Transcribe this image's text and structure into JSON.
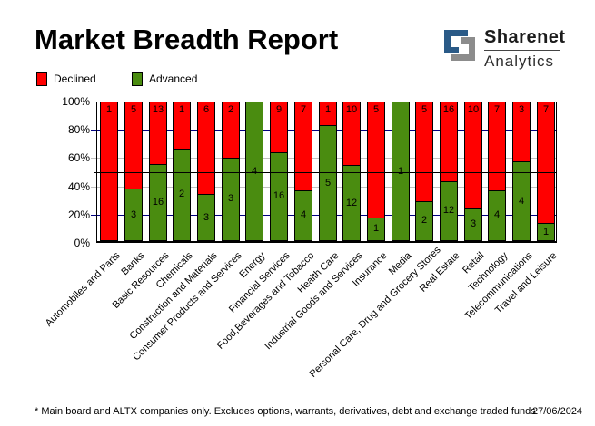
{
  "title": "Market Breadth Report",
  "logo": {
    "brand": "Sharenet",
    "sub": "Analytics",
    "blue": "#2a5a87",
    "gray": "#8c8c8c"
  },
  "legend": [
    {
      "label": "Declined",
      "color": "#ff0000"
    },
    {
      "label": "Advanced",
      "color": "#4a8c10"
    }
  ],
  "chart_data": {
    "type": "bar",
    "stacked": "percent",
    "title": "Market Breadth Report",
    "xlabel": "",
    "ylabel": "",
    "ylim": [
      0,
      100
    ],
    "y_ticks": [
      "100%",
      "80%",
      "60%",
      "40%",
      "20%",
      "0%"
    ],
    "categories": [
      "Automobiles and Parts",
      "Banks",
      "Basic Resources",
      "Chemicals",
      "Construction and Materials",
      "Consumer Products and Services",
      "Energy",
      "Financial Services",
      "Food,Beverages and Tobacco",
      "Health Care",
      "Industrial Goods and Services",
      "Insurance",
      "Media",
      "Personal Care, Drug and Grocery Stores",
      "Real Estate",
      "Retail",
      "Technology",
      "Telecommunications",
      "Travel and Leisure"
    ],
    "series": [
      {
        "name": "Declined",
        "color": "#ff0000",
        "values": [
          1,
          5,
          13,
          1,
          6,
          2,
          0,
          9,
          7,
          1,
          10,
          5,
          0,
          5,
          16,
          10,
          7,
          3,
          7
        ]
      },
      {
        "name": "Advanced",
        "color": "#4a8c10",
        "values": [
          0,
          3,
          16,
          2,
          3,
          3,
          4,
          16,
          4,
          5,
          12,
          1,
          1,
          2,
          12,
          3,
          4,
          4,
          1
        ]
      }
    ],
    "gridlines": {
      "navy": [
        20,
        80
      ],
      "silver": [
        40,
        60
      ],
      "black": [
        50
      ]
    },
    "gridline_colors": {
      "navy": "#000080",
      "silver": "#c0c0c0",
      "black": "#000000"
    },
    "legend_position": "top-left"
  },
  "footnote": "* Main board and ALTX companies only. Excludes options, warrants, derivatives, debt and exchange traded funds",
  "date": "27/06/2024"
}
